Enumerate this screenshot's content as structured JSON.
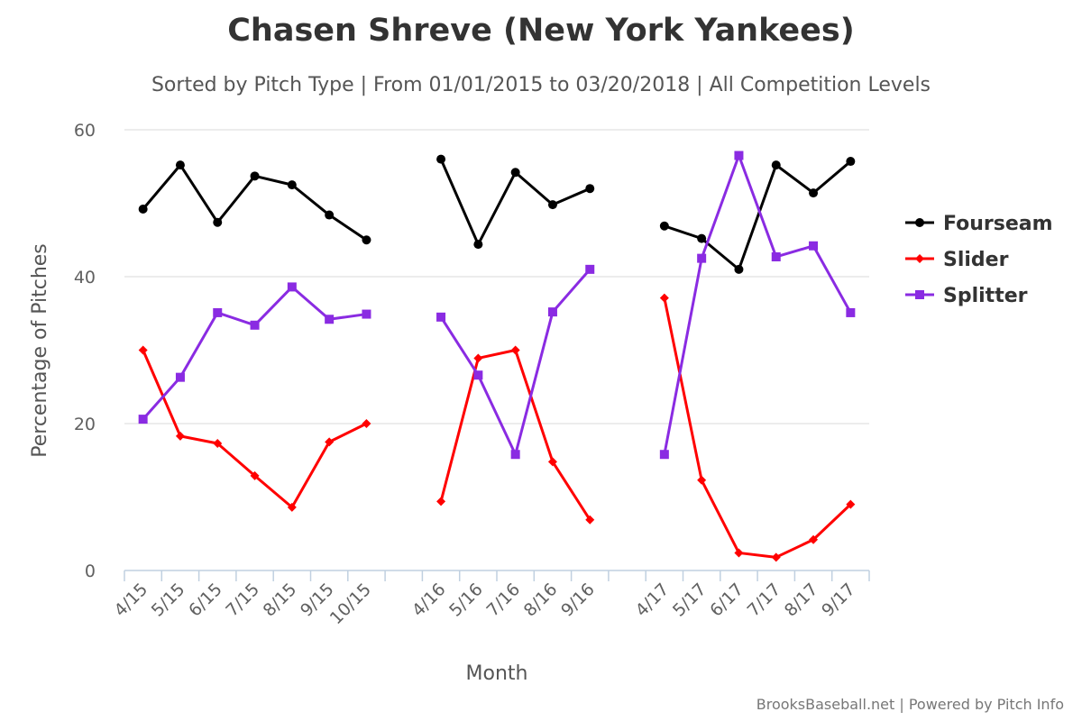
{
  "chart_data": {
    "type": "line",
    "title": "Chasen Shreve (New York Yankees)",
    "subtitle": "Sorted by Pitch Type | From 01/01/2015 to 03/20/2018 | All Competition Levels",
    "xlabel": "Month",
    "ylabel": "Percentage of Pitches",
    "ylim": [
      0,
      60
    ],
    "yticks": [
      0,
      20,
      40,
      60
    ],
    "grid": true,
    "legend_position": "right",
    "categories": [
      "4/15",
      "5/15",
      "6/15",
      "7/15",
      "8/15",
      "9/15",
      "10/15",
      "",
      "4/16",
      "5/16",
      "7/16",
      "8/16",
      "9/16",
      "",
      "4/17",
      "5/17",
      "6/17",
      "7/17",
      "8/17",
      "9/17"
    ],
    "series": [
      {
        "name": "Fourseam",
        "color": "#000000",
        "marker": "circle",
        "values": [
          49.2,
          55.2,
          47.4,
          53.7,
          52.5,
          48.4,
          45.0,
          null,
          56.0,
          44.4,
          54.2,
          49.8,
          52.0,
          null,
          46.9,
          45.2,
          41.0,
          55.2,
          51.4,
          55.7
        ]
      },
      {
        "name": "Slider",
        "color": "#ff0000",
        "marker": "diamond",
        "values": [
          30.0,
          18.3,
          17.3,
          12.9,
          8.6,
          17.5,
          20.0,
          null,
          9.4,
          28.9,
          30.0,
          14.8,
          6.9,
          null,
          37.1,
          12.3,
          2.4,
          1.8,
          4.2,
          9.0
        ]
      },
      {
        "name": "Splitter",
        "color": "#8a2be2",
        "marker": "square",
        "values": [
          20.6,
          26.3,
          35.1,
          33.4,
          38.6,
          34.2,
          34.9,
          null,
          34.5,
          26.6,
          15.8,
          35.2,
          41.0,
          null,
          15.8,
          42.5,
          56.5,
          42.7,
          44.2,
          35.1
        ]
      }
    ]
  },
  "credits": "BrooksBaseball.net | Powered by Pitch Info"
}
